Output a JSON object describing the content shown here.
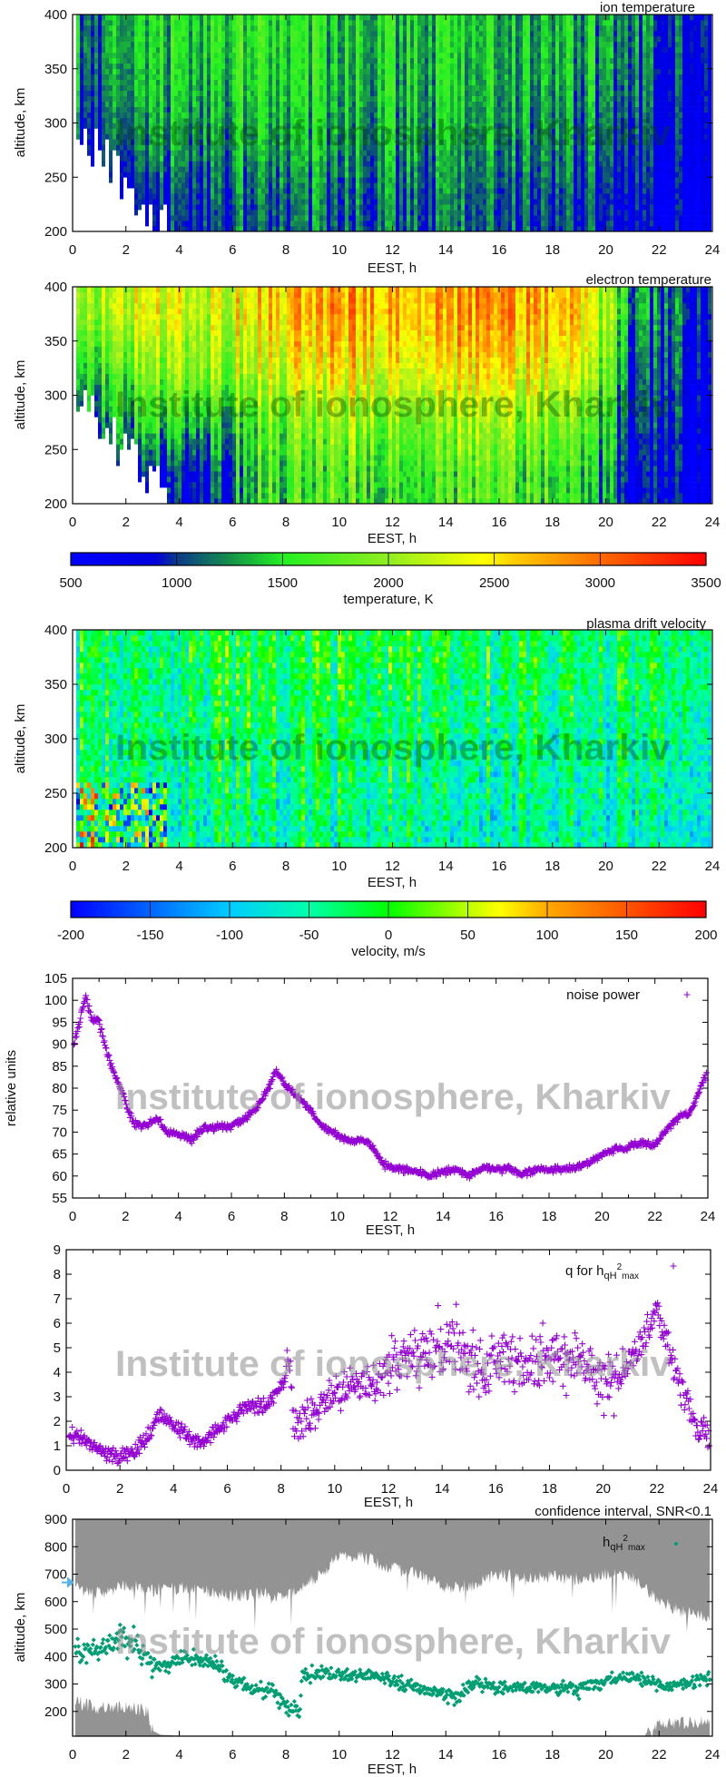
{
  "watermark": "Institute of ionosphere, Kharkiv",
  "chart_data": [
    {
      "type": "heatmap",
      "title": "ion temperature",
      "xlabel": "EEST, h",
      "ylabel": "altitude, km",
      "xlim": [
        0,
        24
      ],
      "ylim": [
        200,
        400
      ],
      "xticks": [
        "0",
        "2",
        "4",
        "6",
        "8",
        "10",
        "12",
        "14",
        "16",
        "18",
        "20",
        "22",
        "24"
      ],
      "yticks": [
        "200",
        "250",
        "300",
        "350",
        "400"
      ],
      "colorbar": "temperature",
      "grid": {
        "hours": [
          1,
          3,
          5,
          7,
          9,
          11,
          13,
          15,
          17,
          19,
          21,
          23
        ],
        "altitudes": [
          225,
          275,
          325,
          375
        ],
        "values": [
          [
            700,
            850,
            1000,
            1100,
            1100,
            1100,
            1100,
            1100,
            1050,
            1000,
            800,
            700
          ],
          [
            900,
            1200,
            1200,
            1300,
            1300,
            1250,
            1250,
            1250,
            1200,
            1150,
            950,
            800
          ],
          [
            1100,
            1350,
            1350,
            1450,
            1400,
            1350,
            1350,
            1350,
            1300,
            1250,
            1100,
            900
          ],
          [
            1200,
            1400,
            1450,
            1550,
            1450,
            1400,
            1400,
            1400,
            1350,
            1350,
            1200,
            1000
          ]
        ]
      }
    },
    {
      "type": "heatmap",
      "title": "electron temperature",
      "xlabel": "EEST, h",
      "ylabel": "altitude, km",
      "xlim": [
        0,
        24
      ],
      "ylim": [
        200,
        400
      ],
      "xticks": [
        "0",
        "2",
        "4",
        "6",
        "8",
        "10",
        "12",
        "14",
        "16",
        "18",
        "20",
        "22",
        "24"
      ],
      "yticks": [
        "200",
        "250",
        "300",
        "350",
        "400"
      ],
      "colorbar": "temperature",
      "grid": {
        "hours": [
          1,
          3,
          5,
          7,
          9,
          11,
          13,
          15,
          17,
          19,
          21,
          23
        ],
        "altitudes": [
          225,
          275,
          325,
          375
        ],
        "values": [
          [
            700,
            900,
            800,
            1600,
            1700,
            1700,
            1700,
            1700,
            1700,
            1500,
            800,
            700
          ],
          [
            1100,
            1600,
            1300,
            1800,
            2000,
            2000,
            2000,
            2000,
            2000,
            1800,
            1000,
            800
          ],
          [
            1500,
            2000,
            1900,
            2300,
            2500,
            2500,
            2500,
            2500,
            2500,
            2300,
            1100,
            900
          ],
          [
            2000,
            2400,
            2100,
            2600,
            2800,
            2800,
            2800,
            2800,
            2800,
            2600,
            1300,
            1000
          ]
        ]
      }
    },
    {
      "type": "colorbar",
      "label": "temperature, K",
      "range": [
        500,
        3500
      ],
      "ticks": [
        "500",
        "1000",
        "1500",
        "2000",
        "2500",
        "3000",
        "3500"
      ],
      "stops": [
        [
          500,
          "#0000ff"
        ],
        [
          900,
          "#0000dd"
        ],
        [
          1000,
          "#0a3a8a"
        ],
        [
          1250,
          "#15904a"
        ],
        [
          1500,
          "#22f022"
        ],
        [
          2000,
          "#90ee20"
        ],
        [
          2450,
          "#ffff00"
        ],
        [
          2600,
          "#ffcc00"
        ],
        [
          3000,
          "#ff6a00"
        ],
        [
          3500,
          "#ff0000"
        ]
      ]
    },
    {
      "type": "heatmap",
      "title": "plasma drift velocity",
      "xlabel": "EEST, h",
      "ylabel": "altitude, km",
      "xlim": [
        0,
        24
      ],
      "ylim": [
        200,
        400
      ],
      "xticks": [
        "0",
        "2",
        "4",
        "6",
        "8",
        "10",
        "12",
        "14",
        "16",
        "18",
        "20",
        "22",
        "24"
      ],
      "yticks": [
        "200",
        "250",
        "300",
        "350",
        "400"
      ],
      "colorbar": "velocity",
      "grid": {
        "hours": [
          1,
          3,
          5,
          7,
          9,
          11,
          13,
          15,
          17,
          19,
          21,
          23
        ],
        "altitudes": [
          225,
          275,
          325,
          375
        ],
        "values": [
          [
            0,
            -50,
            -50,
            -40,
            -40,
            -40,
            -50,
            -50,
            -50,
            -60,
            -60,
            -60
          ],
          [
            -30,
            -40,
            -40,
            -30,
            -30,
            -30,
            -40,
            -40,
            -40,
            -50,
            -50,
            -50
          ],
          [
            -30,
            -40,
            -30,
            -20,
            -20,
            -20,
            -30,
            -30,
            -30,
            -40,
            -40,
            -40
          ],
          [
            -20,
            -40,
            -20,
            -10,
            -10,
            -10,
            -10,
            -20,
            -20,
            -30,
            -30,
            -30
          ]
        ]
      }
    },
    {
      "type": "colorbar",
      "label": "velocity, m/s",
      "range": [
        -200,
        200
      ],
      "ticks": [
        "-200",
        "-150",
        "-100",
        "-50",
        "0",
        "50",
        "100",
        "150",
        "200"
      ],
      "stops": [
        [
          -200,
          "#0000ff"
        ],
        [
          -150,
          "#0066ff"
        ],
        [
          -100,
          "#00ccff"
        ],
        [
          -50,
          "#00ffaa"
        ],
        [
          0,
          "#00ff00"
        ],
        [
          50,
          "#bbff00"
        ],
        [
          70,
          "#ffff00"
        ],
        [
          100,
          "#ffaa00"
        ],
        [
          150,
          "#ff5500"
        ],
        [
          200,
          "#ff0000"
        ]
      ]
    },
    {
      "type": "scatter",
      "legend": "noise power",
      "xlabel": "EEST, h",
      "ylabel": "relative units",
      "xlim": [
        0,
        24
      ],
      "ylim": [
        55,
        105
      ],
      "xticks": [
        "0",
        "2",
        "4",
        "6",
        "8",
        "10",
        "12",
        "14",
        "16",
        "18",
        "20",
        "22",
        "24"
      ],
      "yticks": [
        "55",
        "60",
        "65",
        "70",
        "75",
        "80",
        "85",
        "90",
        "95",
        "100",
        "105"
      ],
      "color": "#9400d3",
      "marker": "plus",
      "points": [
        [
          0.05,
          90
        ],
        [
          0.3,
          96
        ],
        [
          0.5,
          101
        ],
        [
          0.7,
          96
        ],
        [
          1.0,
          95
        ],
        [
          1.3,
          88
        ],
        [
          1.6,
          83
        ],
        [
          2.0,
          77
        ],
        [
          2.3,
          72
        ],
        [
          2.8,
          71.5
        ],
        [
          3.2,
          73
        ],
        [
          3.6,
          70
        ],
        [
          4.0,
          69.5
        ],
        [
          4.5,
          68.5
        ],
        [
          5.0,
          71
        ],
        [
          5.5,
          71
        ],
        [
          6.0,
          71.5
        ],
        [
          6.5,
          73
        ],
        [
          7.0,
          76
        ],
        [
          7.4,
          80
        ],
        [
          7.7,
          84
        ],
        [
          8.0,
          81
        ],
        [
          8.3,
          79
        ],
        [
          8.7,
          77
        ],
        [
          9.0,
          74.5
        ],
        [
          9.3,
          72
        ],
        [
          10,
          69
        ],
        [
          10.5,
          68
        ],
        [
          11,
          68
        ],
        [
          11.3,
          67
        ],
        [
          11.7,
          63
        ],
        [
          12,
          62
        ],
        [
          12.5,
          61.5
        ],
        [
          13,
          61
        ],
        [
          13.5,
          60
        ],
        [
          14,
          61
        ],
        [
          14.5,
          61.5
        ],
        [
          15,
          60
        ],
        [
          15.5,
          62
        ],
        [
          16,
          61.5
        ],
        [
          16.5,
          61.5
        ],
        [
          17,
          60.5
        ],
        [
          17.5,
          61.5
        ],
        [
          18,
          61.5
        ],
        [
          18.5,
          61.5
        ],
        [
          19,
          62
        ],
        [
          19.5,
          63
        ],
        [
          20,
          65
        ],
        [
          20.5,
          66
        ],
        [
          21,
          66.5
        ],
        [
          21.5,
          67.5
        ],
        [
          22,
          67
        ],
        [
          22.5,
          71
        ],
        [
          23,
          74
        ],
        [
          23.3,
          74
        ],
        [
          23.6,
          78
        ],
        [
          23.9,
          83
        ]
      ]
    },
    {
      "type": "scatter",
      "legend": {
        "text": "q for h",
        "sub": "qH",
        "sup": "2",
        "sub2": "max"
      },
      "xlabel": "EEST, h",
      "ylabel": "",
      "xlim": [
        0,
        24
      ],
      "ylim": [
        0,
        9
      ],
      "xticks": [
        "0",
        "2",
        "4",
        "6",
        "8",
        "10",
        "12",
        "14",
        "16",
        "18",
        "20",
        "22",
        "24"
      ],
      "yticks": [
        "0",
        "1",
        "2",
        "3",
        "4",
        "5",
        "6",
        "7",
        "8",
        "9"
      ],
      "color": "#9400d3",
      "marker": "plus",
      "points": [
        [
          0.1,
          1.5
        ],
        [
          0.5,
          1.4
        ],
        [
          1,
          1.0
        ],
        [
          1.5,
          0.6
        ],
        [
          2,
          0.5
        ],
        [
          2.5,
          0.8
        ],
        [
          3,
          1.3
        ],
        [
          3.5,
          2.3
        ],
        [
          4,
          1.8
        ],
        [
          4.5,
          1.5
        ],
        [
          5,
          1.1
        ],
        [
          5.5,
          1.5
        ],
        [
          6,
          2.0
        ],
        [
          6.5,
          2.5
        ],
        [
          7,
          2.6
        ],
        [
          7.5,
          2.7
        ],
        [
          8,
          3.5
        ],
        [
          8.3,
          4.5
        ],
        [
          8.5,
          1.8
        ],
        [
          9,
          2.3
        ],
        [
          9.5,
          2.7
        ],
        [
          10,
          3.2
        ],
        [
          10.5,
          3.4
        ],
        [
          11,
          3.5
        ],
        [
          11.5,
          3.5
        ],
        [
          12,
          4.3
        ],
        [
          12.5,
          4.5
        ],
        [
          13,
          4.8
        ],
        [
          13.5,
          5.0
        ],
        [
          14,
          4.8
        ],
        [
          14.5,
          5.5
        ],
        [
          15,
          4.5
        ],
        [
          15.5,
          3.8
        ],
        [
          16,
          4.7
        ],
        [
          16.5,
          4.8
        ],
        [
          17,
          4.2
        ],
        [
          17.5,
          4.4
        ],
        [
          18,
          4.5
        ],
        [
          18.5,
          4.5
        ],
        [
          19,
          4.8
        ],
        [
          19.5,
          4.0
        ],
        [
          20,
          3.4
        ],
        [
          20.5,
          3.5
        ],
        [
          21,
          4.5
        ],
        [
          21.5,
          5.3
        ],
        [
          22,
          6.5
        ],
        [
          22.3,
          5.5
        ],
        [
          22.7,
          4.0
        ],
        [
          23,
          3.0
        ],
        [
          23.5,
          1.8
        ],
        [
          23.9,
          1.4
        ]
      ]
    },
    {
      "type": "scatter",
      "title": "confidence interval, SNR<0.1",
      "legend": {
        "text": "h",
        "sub": "qH",
        "sup": "2",
        "sub2": "max"
      },
      "xlabel": "EEST, h",
      "ylabel": "altitude, km",
      "xlim": [
        0,
        24
      ],
      "ylim": [
        110,
        900
      ],
      "xticks": [
        "0",
        "2",
        "4",
        "6",
        "8",
        "10",
        "12",
        "14",
        "16",
        "18",
        "20",
        "22",
        "24"
      ],
      "yticks": [
        "200",
        "300",
        "400",
        "500",
        "600",
        "700",
        "800",
        "900"
      ],
      "color": "#009e73",
      "interval_color": "#808080",
      "marker_color": "#56b4e9",
      "marker_value": 670,
      "marker": "dot",
      "points": [
        [
          0.1,
          430
        ],
        [
          0.5,
          410
        ],
        [
          1,
          420
        ],
        [
          1.5,
          450
        ],
        [
          2,
          470
        ],
        [
          2.5,
          430
        ],
        [
          3,
          380
        ],
        [
          3.5,
          360
        ],
        [
          4,
          390
        ],
        [
          4.5,
          390
        ],
        [
          5,
          390
        ],
        [
          5.5,
          360
        ],
        [
          6,
          310
        ],
        [
          6.5,
          290
        ],
        [
          7,
          280
        ],
        [
          7.5,
          270
        ],
        [
          8,
          220
        ],
        [
          8.5,
          200
        ],
        [
          8.6,
          330
        ],
        [
          9,
          330
        ],
        [
          9.5,
          340
        ],
        [
          10,
          335
        ],
        [
          10.5,
          330
        ],
        [
          11,
          330
        ],
        [
          11.5,
          330
        ],
        [
          12,
          305
        ],
        [
          12.5,
          300
        ],
        [
          13,
          290
        ],
        [
          13.5,
          270
        ],
        [
          14,
          260
        ],
        [
          14.5,
          250
        ],
        [
          15,
          300
        ],
        [
          15.5,
          295
        ],
        [
          16,
          290
        ],
        [
          16.5,
          285
        ],
        [
          17,
          285
        ],
        [
          17.5,
          285
        ],
        [
          18,
          285
        ],
        [
          18.5,
          285
        ],
        [
          19,
          280
        ],
        [
          19.5,
          300
        ],
        [
          20,
          310
        ],
        [
          20.5,
          325
        ],
        [
          21,
          330
        ],
        [
          21.5,
          310
        ],
        [
          22,
          295
        ],
        [
          22.5,
          295
        ],
        [
          23,
          300
        ],
        [
          23.5,
          315
        ],
        [
          23.9,
          320
        ]
      ],
      "interval_upper_bound": [
        [
          0,
          650
        ],
        [
          1,
          630
        ],
        [
          2,
          660
        ],
        [
          3,
          640
        ],
        [
          4,
          650
        ],
        [
          5,
          640
        ],
        [
          6,
          620
        ],
        [
          7,
          630
        ],
        [
          8,
          620
        ],
        [
          9,
          680
        ],
        [
          10,
          760
        ],
        [
          11,
          760
        ],
        [
          12,
          720
        ],
        [
          13,
          700
        ],
        [
          14,
          650
        ],
        [
          15,
          660
        ],
        [
          16,
          700
        ],
        [
          17,
          680
        ],
        [
          18,
          690
        ],
        [
          19,
          680
        ],
        [
          20,
          700
        ],
        [
          21,
          690
        ],
        [
          22,
          600
        ],
        [
          23,
          560
        ],
        [
          24,
          540
        ]
      ],
      "interval_lower_bound": [
        [
          0,
          240
        ],
        [
          1,
          210
        ],
        [
          2,
          220
        ],
        [
          2.8,
          200
        ],
        [
          3,
          130
        ],
        [
          3.3,
          115
        ],
        [
          4,
          112
        ],
        [
          21.5,
          112
        ],
        [
          22,
          150
        ],
        [
          23,
          160
        ],
        [
          24,
          170
        ]
      ]
    }
  ]
}
